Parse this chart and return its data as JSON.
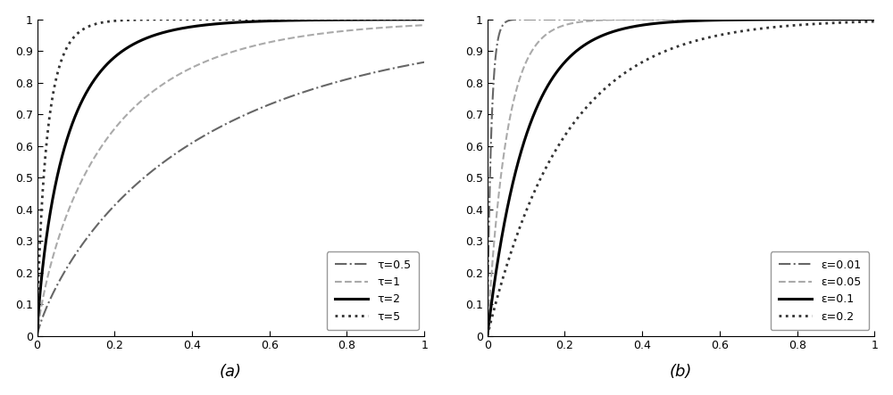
{
  "fig_width": 10.0,
  "fig_height": 4.43,
  "dpi": 100,
  "background_color": "#ffffff",
  "plot_a": {
    "title": "(a)",
    "xlim": [
      0,
      1
    ],
    "ylim": [
      0,
      1
    ],
    "xticks": [
      0,
      0.2,
      0.4,
      0.6,
      0.8,
      1.0
    ],
    "yticks": [
      0,
      0.1,
      0.2,
      0.3,
      0.4,
      0.5,
      0.6,
      0.7,
      0.8,
      0.9,
      1.0
    ],
    "series": [
      {
        "tau": 0.5,
        "label": "τ=0.5",
        "color": "#666666",
        "linestyle": "dashdot",
        "linewidth": 1.5
      },
      {
        "tau": 1,
        "label": "τ=1",
        "color": "#aaaaaa",
        "linestyle": "dashed",
        "linewidth": 1.5
      },
      {
        "tau": 2,
        "label": "τ=2",
        "color": "#000000",
        "linestyle": "solid",
        "linewidth": 2.2
      },
      {
        "tau": 5,
        "label": "τ=5",
        "color": "#333333",
        "linestyle": "dotted",
        "linewidth": 2.0
      }
    ]
  },
  "plot_b": {
    "title": "(b)",
    "xlim": [
      0,
      1
    ],
    "ylim": [
      0,
      1
    ],
    "xticks": [
      0,
      0.2,
      0.4,
      0.6,
      0.8,
      1.0
    ],
    "yticks": [
      0,
      0.1,
      0.2,
      0.3,
      0.4,
      0.5,
      0.6,
      0.7,
      0.8,
      0.9,
      1.0
    ],
    "series": [
      {
        "eps": 0.01,
        "label": "ε=0.01",
        "color": "#666666",
        "linestyle": "dashdot",
        "linewidth": 1.5
      },
      {
        "eps": 0.05,
        "label": "ε=0.05",
        "color": "#aaaaaa",
        "linestyle": "dashed",
        "linewidth": 1.5
      },
      {
        "eps": 0.1,
        "label": "ε=0.1",
        "color": "#000000",
        "linestyle": "solid",
        "linewidth": 2.2
      },
      {
        "eps": 0.2,
        "label": "ε=0.2",
        "color": "#333333",
        "linestyle": "dotted",
        "linewidth": 2.0
      }
    ]
  }
}
